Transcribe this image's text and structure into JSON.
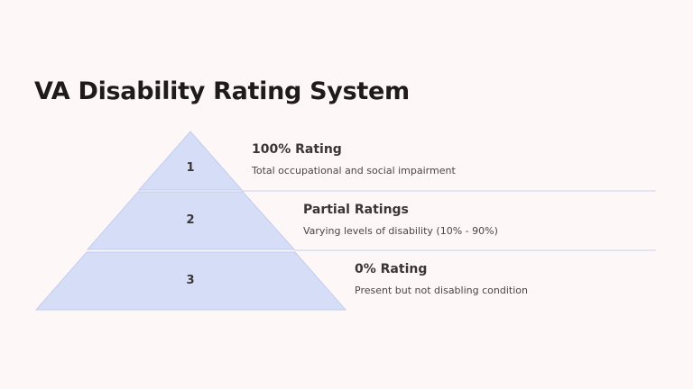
{
  "title": "VA Disability Rating System",
  "tiers": [
    {
      "number": "1",
      "heading": "100% Rating",
      "description": "Total occupational and social impairment"
    },
    {
      "number": "2",
      "heading": "Partial Ratings",
      "description": "Varying levels of disability (10% - 90%)"
    },
    {
      "number": "3",
      "heading": "0% Rating",
      "description": "Present but not disabling condition"
    }
  ]
}
